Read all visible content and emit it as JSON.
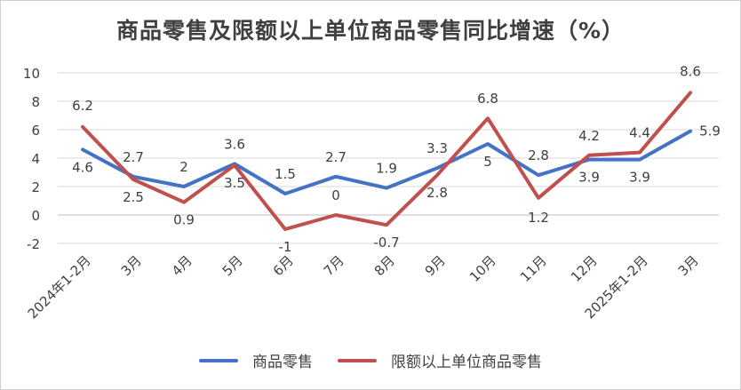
{
  "chart_data": {
    "type": "line",
    "title": "商品零售及限额以上单位商品零售同比增速（%）",
    "categories": [
      "2024年1-2月",
      "3月",
      "4月",
      "5月",
      "6月",
      "7月",
      "8月",
      "9月",
      "10月",
      "11月",
      "12月",
      "2025年1-2月",
      "3月"
    ],
    "series": [
      {
        "name": "商品零售",
        "color": "#4472c4",
        "values": [
          4.6,
          2.7,
          2,
          3.6,
          1.5,
          2.7,
          1.9,
          3.3,
          5,
          2.8,
          3.9,
          3.9,
          5.9
        ],
        "labels": [
          "4.6",
          "2.7",
          "2",
          "3.6",
          "1.5",
          "2.7",
          "1.9",
          "3.3",
          "5",
          "2.8",
          "3.9",
          "3.9",
          "5.9"
        ]
      },
      {
        "name": "限额以上单位商品零售",
        "color": "#c0504d",
        "values": [
          6.2,
          2.5,
          0.9,
          3.5,
          -1,
          0,
          -0.7,
          2.8,
          6.8,
          1.2,
          4.2,
          4.4,
          8.6
        ],
        "labels": [
          "6.2",
          "2.5",
          "0.9",
          "3.5",
          "-1",
          "0",
          "-0.7",
          "2.8",
          "6.8",
          "1.2",
          "4.2",
          "4.4",
          "8.6"
        ]
      }
    ],
    "y_ticks": [
      -2,
      0,
      2,
      4,
      6,
      8,
      10
    ],
    "y_tick_labels": [
      "-2",
      "0",
      "2",
      "4",
      "6",
      "8",
      "10"
    ],
    "ylim": [
      -2,
      10
    ],
    "grid": true,
    "legend": "bottom"
  }
}
